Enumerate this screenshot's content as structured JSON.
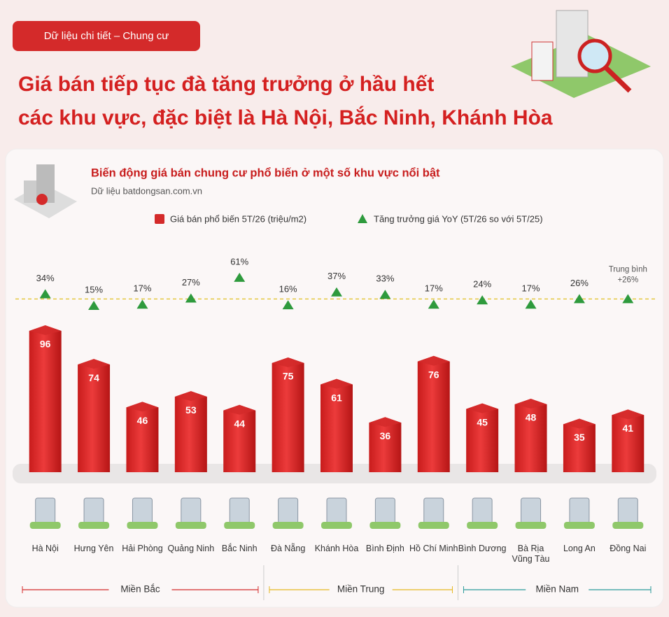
{
  "header": {
    "badge": "Dữ liệu chi tiết – Chung cư",
    "headline": [
      "Giá bán tiếp tục đà tăng trưởng ở hầu hết",
      "các khu vực, đặc biệt là Hà Nội, Bắc Ninh, Khánh Hòa"
    ]
  },
  "chart_data": {
    "type": "bar",
    "title": "Biến động giá bán chung cư phổ biến ở một số khu vực nổi bật",
    "subtitle": "Dữ liệu batdongsan.com.vn",
    "categories": [
      "Hà Nội",
      "Hưng Yên",
      "Hải Phòng",
      "Quảng Ninh",
      "Bắc Ninh",
      "Đà Nẵng",
      "Khánh Hòa",
      "Bình Định",
      "Hồ Chí Minh",
      "Bình Dương",
      "Bà Rịa\nVũng Tàu",
      "Long An",
      "Đồng Nai"
    ],
    "series": [
      {
        "name": "Giá bán phổ biến 5T/26 (triệu/m2)",
        "color": "#d42a2a",
        "values": [
          96,
          74,
          46,
          53,
          44,
          75,
          61,
          36,
          76,
          45,
          48,
          35,
          41
        ]
      },
      {
        "name": "Tăng trưởng giá YoY (5T/26 so với 5T/25)",
        "color": "#2e9a3d",
        "axis": "y2",
        "values": [
          34,
          15,
          17,
          27,
          61,
          16,
          37,
          33,
          17,
          24,
          17,
          26,
          26
        ],
        "value_labels": [
          "34%",
          "15%",
          "17%",
          "27%",
          "61%",
          "16%",
          "37%",
          "33%",
          "17%",
          "24%",
          "17%",
          "26%",
          null
        ]
      }
    ],
    "average": {
      "label": "Trung bình",
      "value": 26,
      "value_label": "+26%",
      "color": "#e0c020"
    },
    "groups": [
      {
        "name": "Miền Bắc",
        "size": 5,
        "color": "#d42a2a"
      },
      {
        "name": "Miền Trung",
        "size": 4,
        "color": "#e6b820"
      },
      {
        "name": "Miền Nam",
        "size": 4,
        "color": "#2a9a9a"
      }
    ]
  }
}
